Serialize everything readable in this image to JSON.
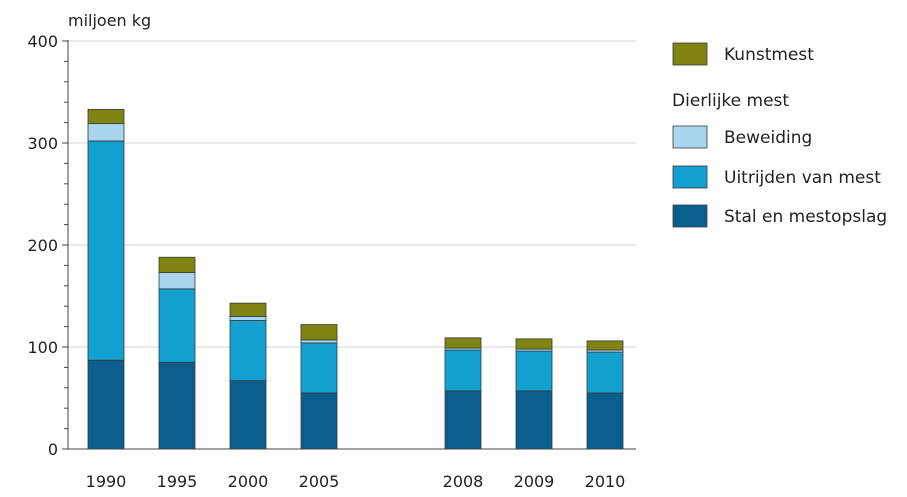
{
  "chart_data": {
    "type": "bar",
    "stacked": true,
    "ylabel": "miljoen kg",
    "ylim": [
      0,
      400
    ],
    "yticks": [
      0,
      100,
      200,
      300,
      400
    ],
    "grid": true,
    "legend_position": "right",
    "categories": [
      "1990",
      "1995",
      "2000",
      "2005",
      "2008",
      "2009",
      "2010"
    ],
    "series": [
      {
        "name": "Stal en mestopslag",
        "color": "#0a5f8e",
        "values": [
          87,
          85,
          67,
          55,
          57,
          57,
          55
        ]
      },
      {
        "name": "Uitrijden van mest",
        "color": "#12a0d1",
        "values": [
          215,
          72,
          59,
          49,
          40,
          39,
          40
        ]
      },
      {
        "name": "Beweiding",
        "color": "#a9d5ef",
        "values": [
          17,
          16,
          4,
          3,
          2,
          2,
          2
        ]
      },
      {
        "name": "Kunstmest",
        "color": "#7f8412",
        "values": [
          14,
          15,
          13,
          15,
          10,
          10,
          9
        ]
      }
    ],
    "legend": {
      "top_entry": "Kunstmest",
      "group_title": "Dierlijke mest",
      "group_entries": [
        "Beweiding",
        "Uitrijden van mest",
        "Stal en mestopslag"
      ]
    }
  }
}
